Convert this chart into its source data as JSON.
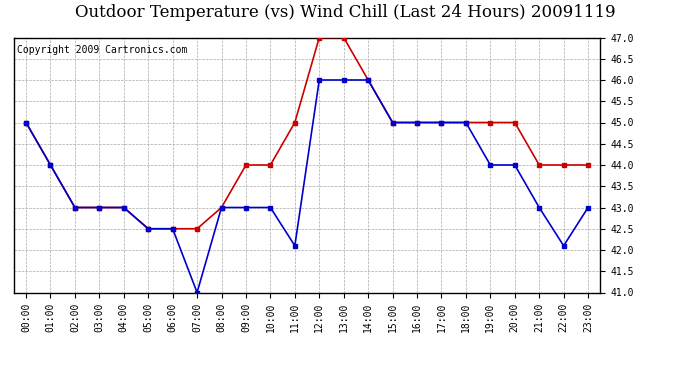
{
  "title": "Outdoor Temperature (vs) Wind Chill (Last 24 Hours) 20091119",
  "copyright": "Copyright 2009 Cartronics.com",
  "hours": [
    "00:00",
    "01:00",
    "02:00",
    "03:00",
    "04:00",
    "05:00",
    "06:00",
    "07:00",
    "08:00",
    "09:00",
    "10:00",
    "11:00",
    "12:00",
    "13:00",
    "14:00",
    "15:00",
    "16:00",
    "17:00",
    "18:00",
    "19:00",
    "20:00",
    "21:00",
    "22:00",
    "23:00"
  ],
  "outdoor_temp": [
    45.0,
    44.0,
    43.0,
    43.0,
    43.0,
    42.5,
    42.5,
    42.5,
    43.0,
    44.0,
    44.0,
    45.0,
    47.0,
    47.0,
    46.0,
    45.0,
    45.0,
    45.0,
    45.0,
    45.0,
    45.0,
    44.0,
    44.0,
    44.0
  ],
  "wind_chill": [
    45.0,
    44.0,
    43.0,
    43.0,
    43.0,
    42.5,
    42.5,
    41.0,
    43.0,
    43.0,
    43.0,
    42.1,
    46.0,
    46.0,
    46.0,
    45.0,
    45.0,
    45.0,
    45.0,
    44.0,
    44.0,
    43.0,
    42.1,
    43.0
  ],
  "ylim": [
    41.0,
    47.0
  ],
  "yticks": [
    41.0,
    41.5,
    42.0,
    42.5,
    43.0,
    43.5,
    44.0,
    44.5,
    45.0,
    45.5,
    46.0,
    46.5,
    47.0
  ],
  "temp_color": "#cc0000",
  "chill_color": "#0000cc",
  "grid_color": "#aaaaaa",
  "bg_color": "#ffffff",
  "title_fontsize": 12,
  "copyright_fontsize": 7
}
